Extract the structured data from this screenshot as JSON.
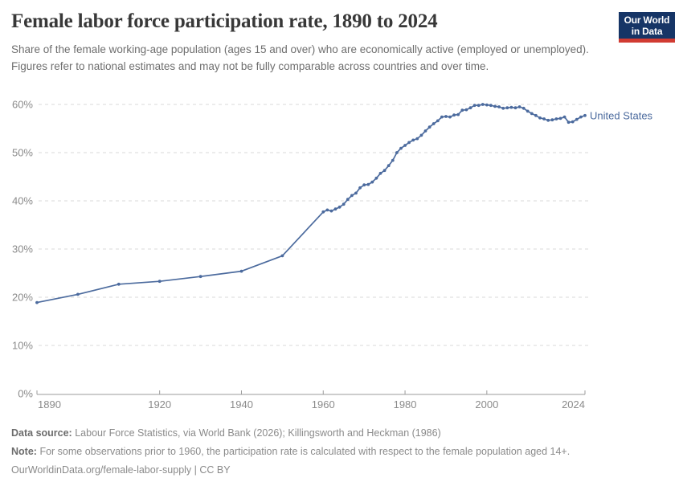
{
  "header": {
    "title": "Female labor force participation rate, 1890 to 2024",
    "subtitle": "Share of the female working-age population (ages 15 and over) who are economically active (employed or unemployed). Figures refer to national estimates and may not be fully comparable across countries and over time.",
    "logo": {
      "line1": "Our World",
      "line2": "in Data",
      "bg_color": "#163566",
      "accent_color": "#D13B32"
    }
  },
  "chart_data": {
    "type": "line",
    "title": "Female labor force participation rate, 1890 to 2024",
    "xlabel": "",
    "ylabel": "",
    "xlim": [
      1890,
      2024
    ],
    "ylim": [
      0,
      60
    ],
    "grid": "horizontal-dashed",
    "legend_position": "end-of-line-label",
    "xtick_values": [
      1890,
      1920,
      1940,
      1960,
      1980,
      2000,
      2024
    ],
    "ytick_values": [
      0,
      10,
      20,
      30,
      40,
      50,
      60
    ],
    "ytick_suffix": "%",
    "series": [
      {
        "name": "United States",
        "color": "#4C6B9E",
        "points": [
          [
            1890,
            18.9
          ],
          [
            1900,
            20.6
          ],
          [
            1910,
            22.7
          ],
          [
            1920,
            23.3
          ],
          [
            1930,
            24.3
          ],
          [
            1940,
            25.4
          ],
          [
            1950,
            28.6
          ],
          [
            1960,
            37.7
          ],
          [
            1961,
            38.1
          ],
          [
            1962,
            37.9
          ],
          [
            1963,
            38.3
          ],
          [
            1964,
            38.7
          ],
          [
            1965,
            39.3
          ],
          [
            1966,
            40.3
          ],
          [
            1967,
            41.1
          ],
          [
            1968,
            41.6
          ],
          [
            1969,
            42.7
          ],
          [
            1970,
            43.3
          ],
          [
            1971,
            43.4
          ],
          [
            1972,
            43.9
          ],
          [
            1973,
            44.7
          ],
          [
            1974,
            45.7
          ],
          [
            1975,
            46.3
          ],
          [
            1976,
            47.3
          ],
          [
            1977,
            48.4
          ],
          [
            1978,
            50.0
          ],
          [
            1979,
            50.9
          ],
          [
            1980,
            51.5
          ],
          [
            1981,
            52.1
          ],
          [
            1982,
            52.6
          ],
          [
            1983,
            52.9
          ],
          [
            1984,
            53.6
          ],
          [
            1985,
            54.5
          ],
          [
            1986,
            55.3
          ],
          [
            1987,
            56.0
          ],
          [
            1988,
            56.6
          ],
          [
            1989,
            57.4
          ],
          [
            1990,
            57.5
          ],
          [
            1991,
            57.4
          ],
          [
            1992,
            57.8
          ],
          [
            1993,
            57.9
          ],
          [
            1994,
            58.8
          ],
          [
            1995,
            58.9
          ],
          [
            1996,
            59.3
          ],
          [
            1997,
            59.8
          ],
          [
            1998,
            59.8
          ],
          [
            1999,
            60.0
          ],
          [
            2000,
            59.9
          ],
          [
            2001,
            59.8
          ],
          [
            2002,
            59.6
          ],
          [
            2003,
            59.5
          ],
          [
            2004,
            59.2
          ],
          [
            2005,
            59.3
          ],
          [
            2006,
            59.4
          ],
          [
            2007,
            59.3
          ],
          [
            2008,
            59.5
          ],
          [
            2009,
            59.2
          ],
          [
            2010,
            58.6
          ],
          [
            2011,
            58.1
          ],
          [
            2012,
            57.7
          ],
          [
            2013,
            57.2
          ],
          [
            2014,
            57.0
          ],
          [
            2015,
            56.7
          ],
          [
            2016,
            56.8
          ],
          [
            2017,
            57.0
          ],
          [
            2018,
            57.1
          ],
          [
            2019,
            57.4
          ],
          [
            2020,
            56.3
          ],
          [
            2021,
            56.4
          ],
          [
            2022,
            56.9
          ],
          [
            2023,
            57.4
          ],
          [
            2024,
            57.7
          ]
        ]
      }
    ]
  },
  "footer": {
    "datasource_label": "Data source:",
    "datasource": "Labour Force Statistics, via World Bank (2026); Killingsworth and Heckman (1986)",
    "note_label": "Note:",
    "note": "For some observations prior to 1960, the participation rate is calculated with respect to the female population aged 14+.",
    "url": "OurWorldinData.org/female-labor-supply",
    "separator": "|",
    "license": "CC BY"
  }
}
